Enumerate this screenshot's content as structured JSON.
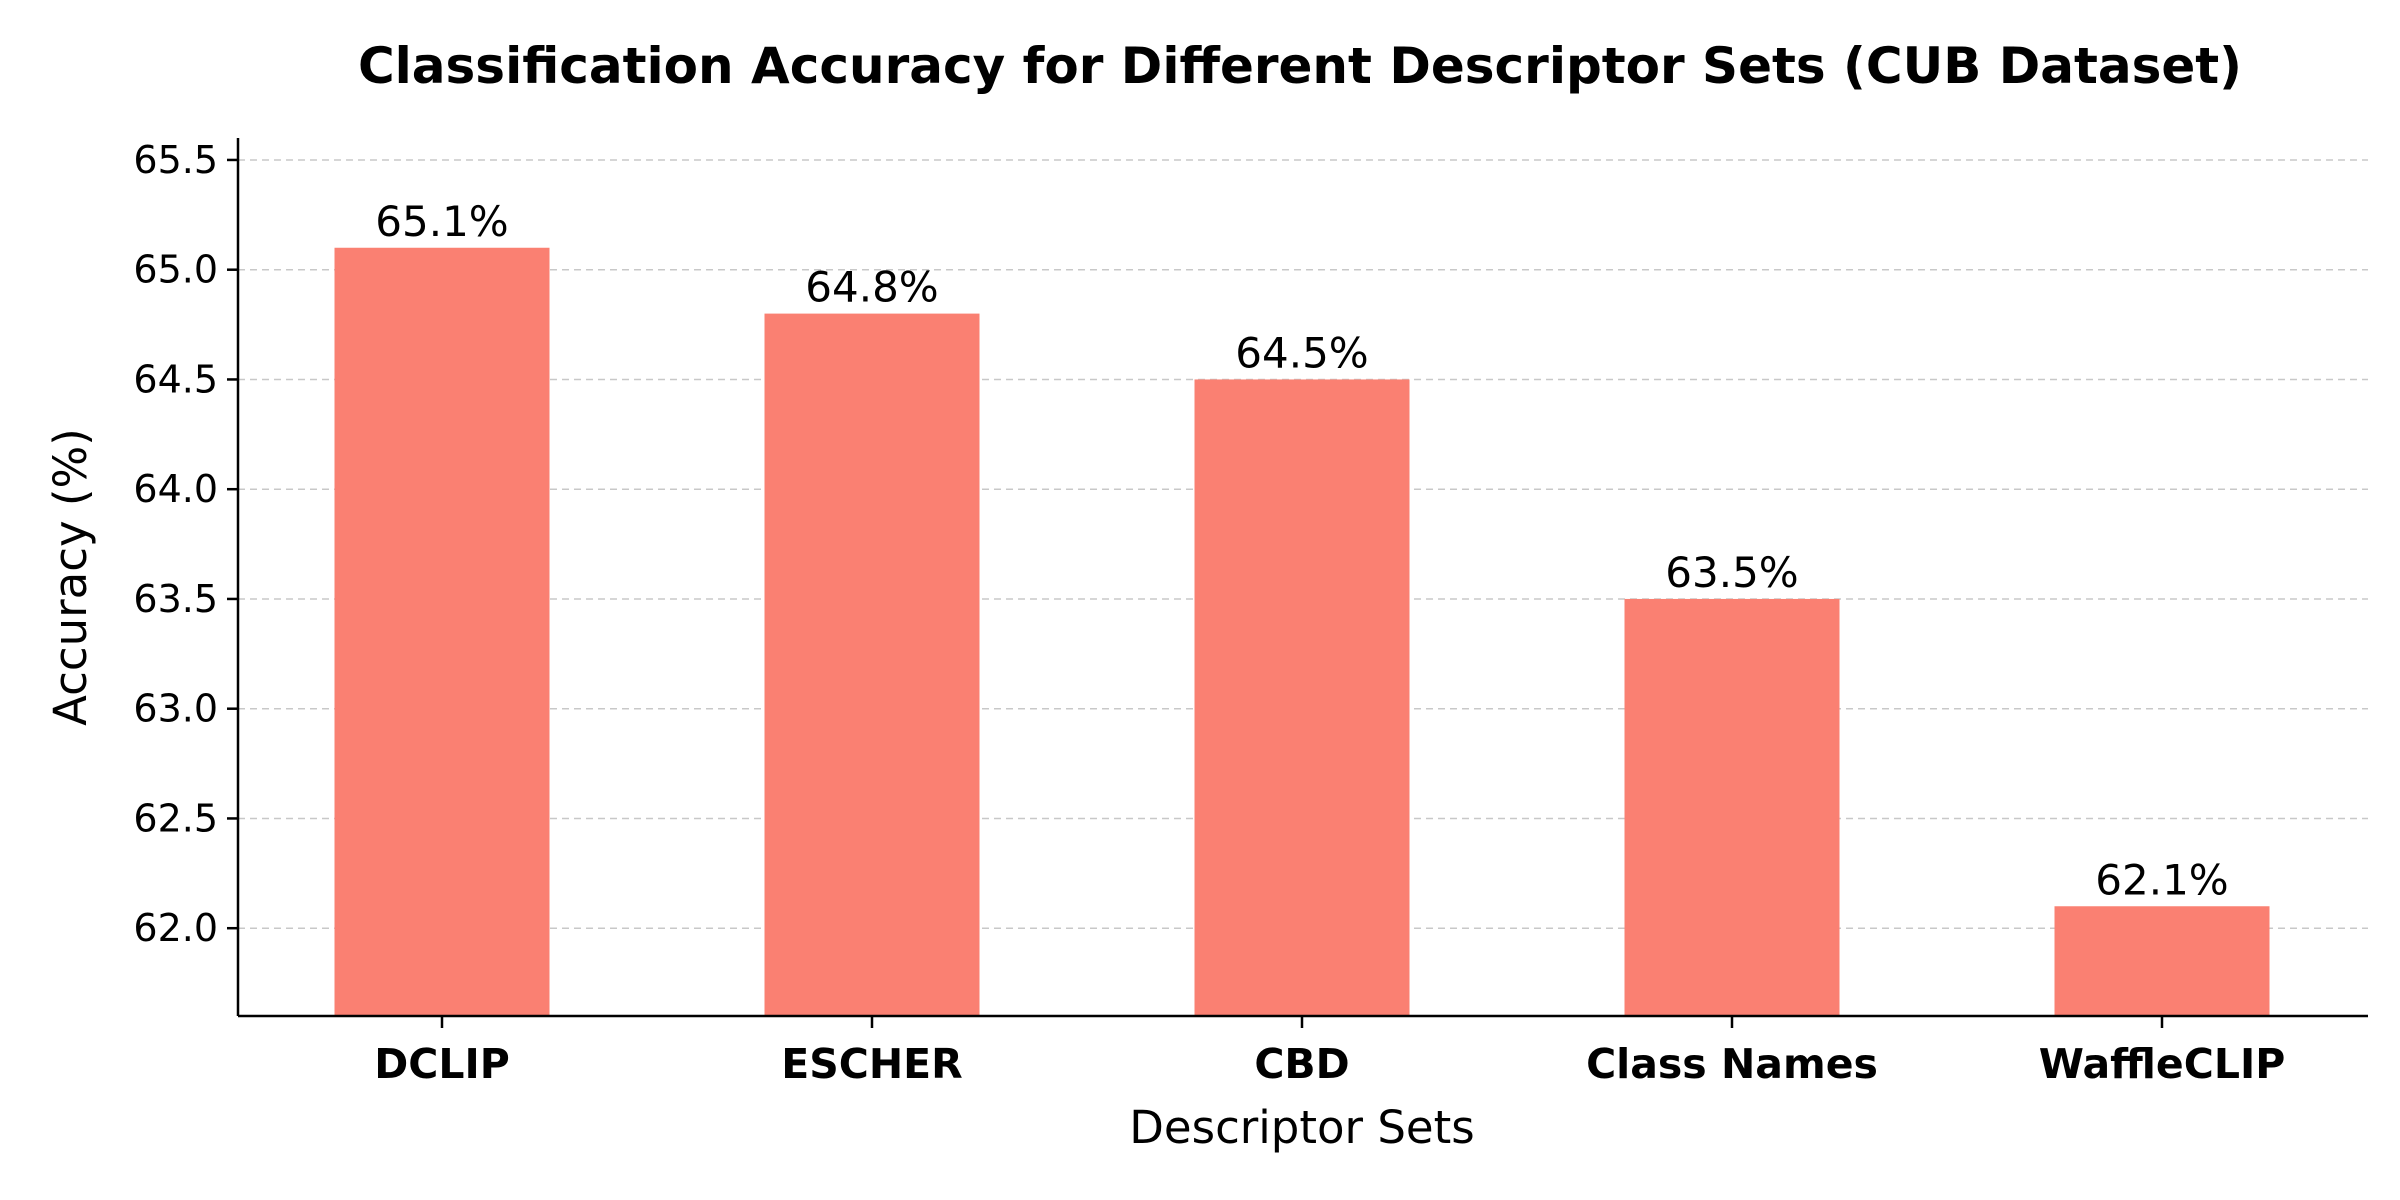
{
  "chart_data": {
    "type": "bar",
    "title": "Classification Accuracy for Different Descriptor Sets (CUB Dataset)",
    "xlabel": "Descriptor Sets",
    "ylabel": "Accuracy (%)",
    "categories": [
      "DCLIP",
      "ESCHER",
      "CBD",
      "Class Names",
      "WaffleCLIP"
    ],
    "values": [
      65.1,
      64.8,
      64.5,
      63.5,
      62.1
    ],
    "data_labels": [
      "65.1%",
      "64.8%",
      "64.5%",
      "63.5%",
      "62.1%"
    ],
    "ylim": [
      61.6,
      65.6
    ],
    "yticks": [
      62.0,
      62.5,
      63.0,
      63.5,
      64.0,
      64.5,
      65.0,
      65.5
    ],
    "ytick_labels": [
      "62.0",
      "62.5",
      "63.0",
      "63.5",
      "64.0",
      "64.5",
      "65.0",
      "65.5"
    ],
    "grid": "y, dashed",
    "legend": "none",
    "bar_color": "#fa8072"
  }
}
